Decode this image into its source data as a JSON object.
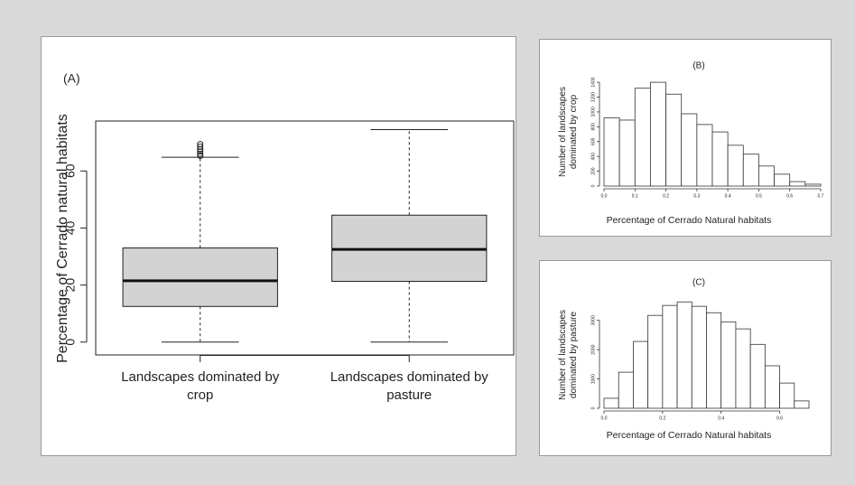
{
  "chart_data": [
    {
      "type": "box",
      "title": "(A)",
      "ylabel": "Percentage of Cerrado natural habitats",
      "categories": [
        "Landscapes dominated by crop",
        "Landscapes dominated by pasture"
      ],
      "boxes": [
        {
          "whisker_low": 0,
          "q1": 12.5,
          "median": 21.5,
          "q3": 33,
          "whisker_high": 64.8,
          "outliers": [
            65.3,
            66,
            66.8,
            67.6,
            68.5,
            69.4
          ]
        },
        {
          "whisker_low": 0,
          "q1": 21.3,
          "median": 32.5,
          "q3": 44.5,
          "whisker_high": 74.5,
          "outliers": []
        }
      ],
      "color": "#d3d3d3",
      "ylim": [
        -4.5,
        77.5
      ],
      "yticks": [
        0,
        20,
        40,
        60
      ]
    },
    {
      "type": "histogram",
      "title": "(B)",
      "xlabel": "Percentage of Cerrado Natural habitats",
      "ylabel": "Number of landscapes dominated by crop",
      "bins": [
        0,
        0.05,
        0.1,
        0.15,
        0.2,
        0.25,
        0.3,
        0.35,
        0.4,
        0.45,
        0.5,
        0.55,
        0.6,
        0.65,
        0.7
      ],
      "values": [
        920,
        890,
        1320,
        1400,
        1240,
        975,
        830,
        730,
        550,
        430,
        270,
        160,
        60,
        25
      ],
      "color": "#ffffff",
      "xlim": [
        0,
        0.7
      ],
      "xticks": [
        {
          "value": 0,
          "label": "0.0"
        },
        0.1,
        0.2,
        0.3,
        0.4,
        0.5,
        0.6,
        0.7
      ],
      "ylim": [
        0,
        1450
      ],
      "yticks": [
        0,
        200,
        400,
        600,
        800,
        1000,
        1200,
        1400
      ]
    },
    {
      "type": "histogram",
      "title": "(C)",
      "xlabel": "Percentage of Cerrado Natural habitats",
      "ylabel": "Number of landscapes dominated by pasture",
      "bins": [
        0,
        0.05,
        0.1,
        0.15,
        0.2,
        0.25,
        0.3,
        0.35,
        0.4,
        0.45,
        0.5,
        0.55,
        0.6,
        0.65,
        0.7
      ],
      "values": [
        340,
        1230,
        2280,
        3170,
        3510,
        3630,
        3480,
        3260,
        2950,
        2710,
        2180,
        1450,
        860,
        250
      ],
      "color": "#ffffff",
      "xlim": [
        0,
        0.7
      ],
      "xticks": [
        {
          "value": 0,
          "label": "0.0"
        },
        0.2,
        0.4,
        0.6
      ],
      "ylim": [
        0,
        3700
      ],
      "yticks": [
        0,
        1000,
        2000,
        3000
      ]
    }
  ]
}
